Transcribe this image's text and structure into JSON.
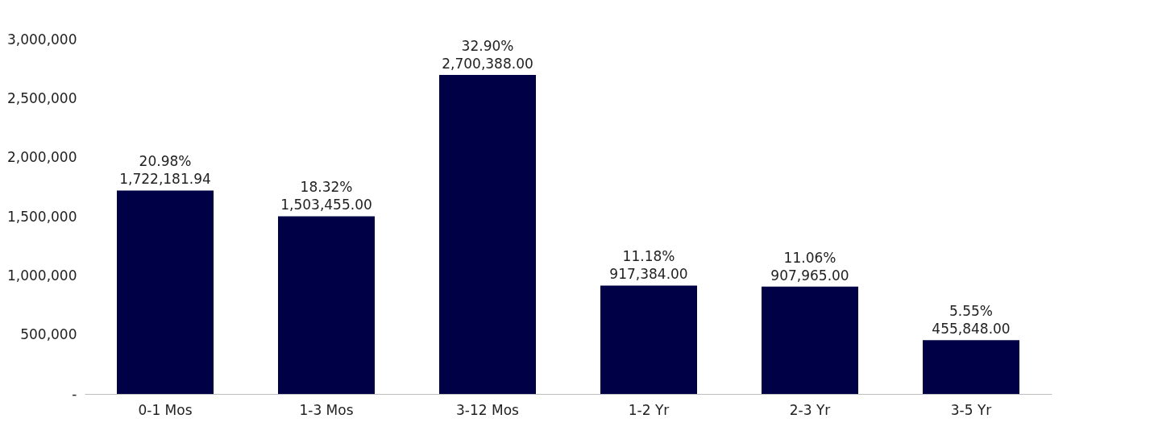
{
  "chart_data": {
    "type": "bar",
    "categories": [
      "0-1 Mos",
      "1-3 Mos",
      "3-12 Mos",
      "1-2 Yr",
      "2-3 Yr",
      "3-5 Yr"
    ],
    "values": [
      1722181.94,
      1503455,
      2700388,
      917384,
      907965,
      455848
    ],
    "value_labels": [
      "20.98%\n1,722,181.94",
      "18.32%\n1,503,455.00",
      "32.90%\n2,700,388.00",
      "11.18%\n917,384.00",
      "11.06%\n907,965.00",
      "5.55%\n455,848.00"
    ],
    "color": "#000046",
    "ylim": [
      0,
      3000000
    ],
    "yticks": [
      {
        "value": 0,
        "label": "-"
      },
      {
        "value": 500000,
        "label": "500,000"
      },
      {
        "value": 1000000,
        "label": "1,000,000"
      },
      {
        "value": 1500000,
        "label": "1,500,000"
      },
      {
        "value": 2000000,
        "label": "2,000,000"
      },
      {
        "value": 2500000,
        "label": "2,500,000"
      },
      {
        "value": 3000000,
        "label": "3,000,000"
      }
    ],
    "grid": false
  }
}
